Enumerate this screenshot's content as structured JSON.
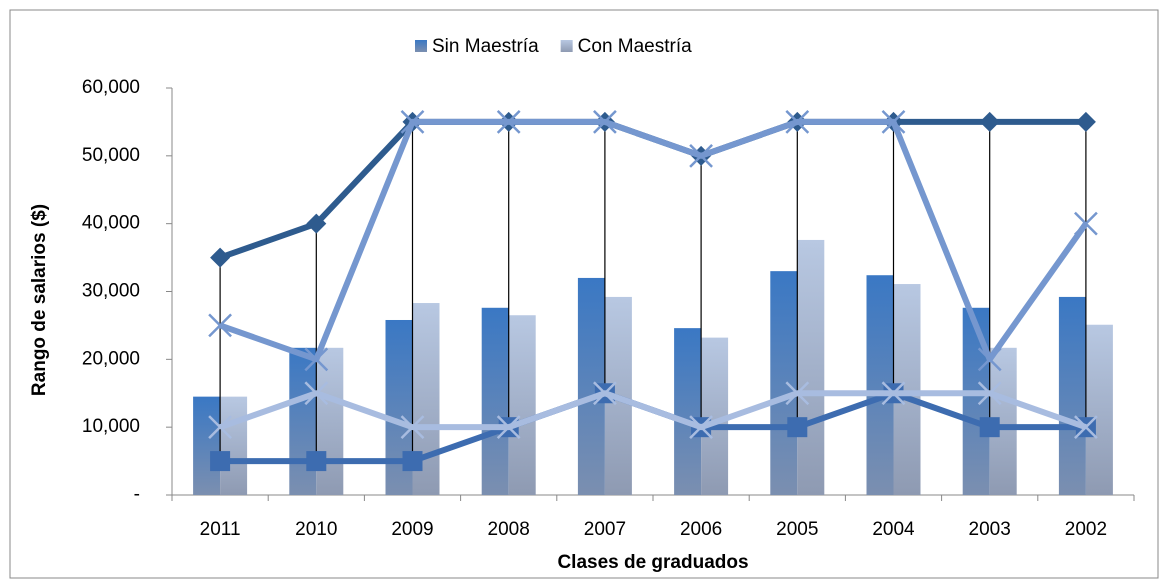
{
  "chart_data": {
    "type": "bar",
    "x_label": "Clases de graduados",
    "y_label": "Rango de salarios ($)",
    "categories": [
      "2011",
      "2010",
      "2009",
      "2008",
      "2007",
      "2006",
      "2005",
      "2004",
      "2003",
      "2002"
    ],
    "series": [
      {
        "name": "Sin Maestría",
        "color": "#3a78c4",
        "values": [
          14500,
          21700,
          25800,
          27600,
          32000,
          24600,
          33000,
          32400,
          27600,
          29200
        ]
      },
      {
        "name": "Con Maestría",
        "color": "#b8c8e2",
        "values": [
          14500,
          21700,
          28300,
          26500,
          29200,
          23200,
          37600,
          31100,
          21700,
          25100
        ]
      }
    ],
    "lines": [
      {
        "color": "#2e5b8e",
        "marker": "diamond",
        "values": [
          35000,
          40000,
          55000,
          55000,
          55000,
          50000,
          55000,
          55000,
          55000,
          55000
        ]
      },
      {
        "color": "#3d6cb0",
        "marker": "square",
        "values": [
          5000,
          5000,
          5000,
          10000,
          15000,
          10000,
          10000,
          15000,
          10000,
          10000
        ]
      },
      {
        "color": "#7597cf",
        "marker": "x",
        "values": [
          25000,
          20000,
          55000,
          55000,
          55000,
          50000,
          55000,
          55000,
          20000,
          40000
        ]
      },
      {
        "color": "#a8bce0",
        "marker": "x",
        "values": [
          10000,
          15000,
          10000,
          10000,
          15000,
          10000,
          15000,
          15000,
          15000,
          10000
        ]
      }
    ],
    "high_low_lines": true,
    "ylim": [
      0,
      60000
    ],
    "yticks": [
      {
        "value": 0,
        "label": "-"
      },
      {
        "value": 10000,
        "label": "10,000"
      },
      {
        "value": 20000,
        "label": "20,000"
      },
      {
        "value": 30000,
        "label": "30,000"
      },
      {
        "value": 40000,
        "label": "40,000"
      },
      {
        "value": 50000,
        "label": "50,000"
      },
      {
        "value": 60000,
        "label": "60,000"
      }
    ],
    "legend": "top"
  }
}
